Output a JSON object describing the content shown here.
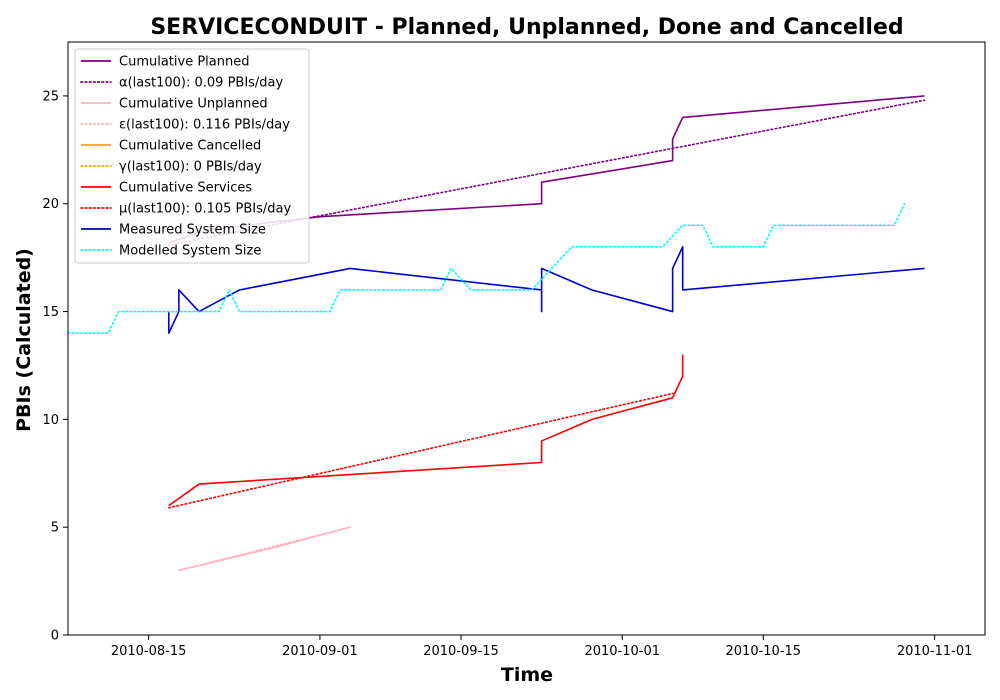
{
  "chart_data": {
    "type": "line",
    "title": "SERVICECONDUIT - Planned, Unplanned, Done  and Cancelled",
    "xlabel": "Time",
    "ylabel": "PBIs (Calculated)",
    "x_type": "date",
    "xlim": [
      "2010-08-07",
      "2010-11-06"
    ],
    "ylim": [
      0,
      27.5
    ],
    "x_ticks": [
      "2010-08-15",
      "2010-09-01",
      "2010-09-15",
      "2010-10-01",
      "2010-10-15",
      "2010-11-01"
    ],
    "y_ticks": [
      0,
      5,
      10,
      15,
      20,
      25
    ],
    "grid": false,
    "legend_position": "top-left",
    "series": [
      {
        "name": "Cumulative Planned",
        "color": "#800080",
        "style": "solid",
        "points": [
          [
            "2010-08-17",
            18.2
          ],
          [
            "2010-08-21",
            18.8
          ],
          [
            "2010-09-01",
            19.4
          ],
          [
            "2010-09-23",
            20.0
          ],
          [
            "2010-09-23",
            21.0
          ],
          [
            "2010-10-06",
            22.0
          ],
          [
            "2010-10-06",
            23.0
          ],
          [
            "2010-10-07",
            24.0
          ],
          [
            "2010-10-31",
            25.0
          ]
        ]
      },
      {
        "name": "α(last100): 0.09 PBIs/day",
        "color": "#800080",
        "style": "dotted",
        "points": [
          [
            "2010-08-17",
            18.1
          ],
          [
            "2010-10-31",
            24.8
          ]
        ]
      },
      {
        "name": "Cumulative Unplanned",
        "color": "#ffb6c1",
        "style": "solid",
        "points": [
          [
            "2010-08-18",
            3.0
          ],
          [
            "2010-08-27",
            4.0
          ],
          [
            "2010-09-04",
            5.0
          ]
        ]
      },
      {
        "name": "ε(last100): 0.116 PBIs/day",
        "color": "#ffb6c1",
        "style": "dotted",
        "points": [
          [
            "2010-08-18",
            3.0
          ],
          [
            "2010-09-04",
            5.0
          ]
        ]
      },
      {
        "name": "Cumulative Cancelled",
        "color": "#ffa500",
        "style": "solid",
        "points": []
      },
      {
        "name": "γ(last100): 0 PBIs/day",
        "color": "#ffa500",
        "style": "dotted",
        "points": []
      },
      {
        "name": "Cumulative Services",
        "color": "#ff0000",
        "style": "solid",
        "points": [
          [
            "2010-08-17",
            6.0
          ],
          [
            "2010-08-20",
            7.0
          ],
          [
            "2010-09-23",
            8.0
          ],
          [
            "2010-09-23",
            9.0
          ],
          [
            "2010-09-28",
            10.0
          ],
          [
            "2010-10-06",
            11.0
          ],
          [
            "2010-10-07",
            12.0
          ],
          [
            "2010-10-07",
            13.0
          ]
        ]
      },
      {
        "name": "μ(last100): 0.105 PBIs/day",
        "color": "#ff0000",
        "style": "dotted",
        "points": [
          [
            "2010-08-17",
            5.9
          ],
          [
            "2010-10-06",
            11.2
          ]
        ]
      },
      {
        "name": "Measured System Size",
        "color": "#0000cd",
        "style": "solid",
        "points": [
          [
            "2010-08-17",
            15.0
          ],
          [
            "2010-08-17",
            14.0
          ],
          [
            "2010-08-18",
            15.0
          ],
          [
            "2010-08-18",
            16.0
          ],
          [
            "2010-08-20",
            15.0
          ],
          [
            "2010-08-24",
            16.0
          ],
          [
            "2010-09-04",
            17.0
          ],
          [
            "2010-09-23",
            16.0
          ],
          [
            "2010-09-23",
            15.0
          ],
          [
            "2010-09-23",
            17.0
          ],
          [
            "2010-09-28",
            16.0
          ],
          [
            "2010-10-06",
            15.0
          ],
          [
            "2010-10-06",
            17.0
          ],
          [
            "2010-10-07",
            18.0
          ],
          [
            "2010-10-07",
            16.0
          ],
          [
            "2010-10-31",
            17.0
          ]
        ]
      },
      {
        "name": "Modelled System Size",
        "color": "#00ffff",
        "style": "dotted",
        "points": [
          [
            "2010-08-07",
            14.0
          ],
          [
            "2010-08-11",
            14.0
          ],
          [
            "2010-08-12",
            15.0
          ],
          [
            "2010-08-22",
            15.0
          ],
          [
            "2010-08-23",
            16.0
          ],
          [
            "2010-08-24",
            15.0
          ],
          [
            "2010-09-02",
            15.0
          ],
          [
            "2010-09-03",
            16.0
          ],
          [
            "2010-09-13",
            16.0
          ],
          [
            "2010-09-14",
            17.0
          ],
          [
            "2010-09-16",
            16.0
          ],
          [
            "2010-09-22",
            16.0
          ],
          [
            "2010-09-24",
            17.0
          ],
          [
            "2010-09-26",
            18.0
          ],
          [
            "2010-10-05",
            18.0
          ],
          [
            "2010-10-07",
            19.0
          ],
          [
            "2010-10-09",
            19.0
          ],
          [
            "2010-10-10",
            18.0
          ],
          [
            "2010-10-15",
            18.0
          ],
          [
            "2010-10-16",
            19.0
          ],
          [
            "2010-10-28",
            19.0
          ],
          [
            "2010-10-29",
            20.0
          ]
        ]
      }
    ]
  }
}
